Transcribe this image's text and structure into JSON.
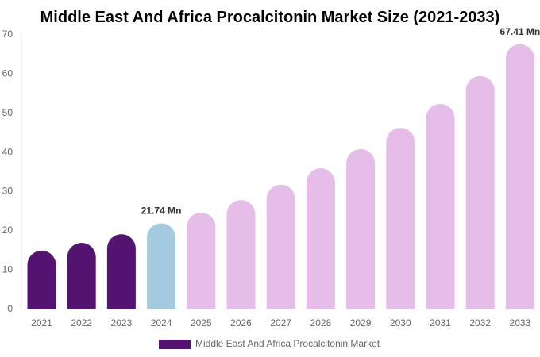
{
  "chart_data": {
    "type": "bar",
    "title": "Middle East And Africa Procalcitonin Market Size (2021-2033)",
    "xlabel": "",
    "ylabel": "",
    "ylim": [
      0,
      70
    ],
    "yticks": [
      0,
      10,
      20,
      30,
      40,
      50,
      60,
      70
    ],
    "grid": false,
    "legend_placement": "bottom",
    "categories": [
      "2021",
      "2022",
      "2023",
      "2024",
      "2025",
      "2026",
      "2027",
      "2028",
      "2029",
      "2030",
      "2031",
      "2032",
      "2033"
    ],
    "series": [
      {
        "name": "Middle East And Africa Procalcitonin Market",
        "values": [
          14.8,
          16.8,
          19.0,
          21.74,
          24.5,
          27.7,
          31.6,
          35.8,
          40.7,
          46.1,
          52.2,
          59.3,
          67.41
        ]
      }
    ],
    "bar_colors": [
      "#541370",
      "#541370",
      "#541370",
      "#a3cadf",
      "#e6bde9",
      "#e6bde9",
      "#e6bde9",
      "#e6bde9",
      "#e6bde9",
      "#e6bde9",
      "#e6bde9",
      "#e6bde9",
      "#e6bde9"
    ],
    "data_labels": [
      {
        "index": 3,
        "text": "21.74 Mn"
      },
      {
        "index": 12,
        "text": "67.41 Mn"
      }
    ],
    "legend_color": "#541370"
  }
}
